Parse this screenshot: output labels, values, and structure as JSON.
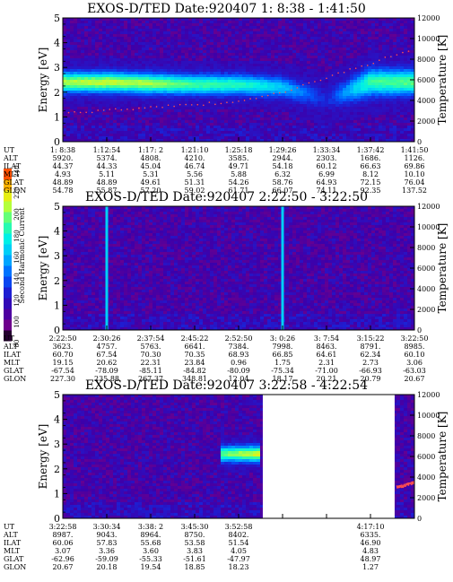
{
  "colorbar": {
    "label": "Second Harmonic Current",
    "ticks": [
      "80",
      "100",
      "120",
      "140",
      "160",
      "180",
      "200",
      "220",
      "240"
    ]
  },
  "panels": [
    {
      "title": "EXOS-D/TED   Date:920407   1: 8:38 - 1:41:50",
      "ylabel": "Energy [eV]",
      "y2label": "Temperature [K]",
      "info_labels": [
        "UT",
        "ALT",
        "ILAT",
        "MLT",
        "GLAT",
        "GLON"
      ],
      "info_columns": [
        [
          "1: 8:38",
          "5920.",
          "44.37",
          "4.93",
          "48.89",
          "54.78"
        ],
        [
          "1:12:54",
          "5374.",
          "44.33",
          "5.11",
          "48.89",
          "55.87"
        ],
        [
          "1:17: 2",
          "4808.",
          "45.04",
          "5.31",
          "49.61",
          "57.20"
        ],
        [
          "1:21:10",
          "4210.",
          "46.74",
          "5.56",
          "51.31",
          "59.02"
        ],
        [
          "1:25:18",
          "3585.",
          "49.71",
          "5.88",
          "54.26",
          "61.71"
        ],
        [
          "1:29:26",
          "2944.",
          "54.18",
          "6.32",
          "58.76",
          "66.07"
        ],
        [
          "1:33:34",
          "2303.",
          "60.12",
          "6.99",
          "64.93",
          "74.11"
        ],
        [
          "1:37:42",
          "1686.",
          "66.63",
          "8.12",
          "72.15",
          "92.35"
        ],
        [
          "1:41:50",
          "1126.",
          "69.86",
          "10.10",
          "76.04",
          "137.52"
        ]
      ]
    },
    {
      "title": "EXOS-D/TED   Date:920407   2:22:50 - 3:22:50",
      "ylabel": "Energy [eV]",
      "y2label": "Temperature [K]",
      "info_labels": [
        "UT",
        "ALT",
        "ILAT",
        "MLT",
        "GLAT",
        "GLON"
      ],
      "info_columns": [
        [
          "2:22:50",
          "3623.",
          "60.70",
          "19.15",
          "-67.54",
          "227.30"
        ],
        [
          "2:30:26",
          "4757.",
          "67.54",
          "20.62",
          "-78.09",
          "235.88"
        ],
        [
          "2:37:54",
          "5763.",
          "70.30",
          "22.31",
          "-85.11",
          "267.37"
        ],
        [
          "2:45:22",
          "6641.",
          "70.35",
          "23.84",
          "-84.82",
          "348.81"
        ],
        [
          "2:52:50",
          "7384.",
          "68.93",
          "0.96",
          "-80.09",
          "12.04"
        ],
        [
          "3: 0:26",
          "7998.",
          "66.85",
          "1.75",
          "-75.34",
          "18.17"
        ],
        [
          "3: 7:54",
          "8463.",
          "64.61",
          "2.31",
          "-71.00",
          "20.21"
        ],
        [
          "3:15:22",
          "8791.",
          "62.34",
          "2.73",
          "-66.93",
          "20.79"
        ],
        [
          "3:22:50",
          "8985.",
          "60.10",
          "3.06",
          "-63.03",
          "20.67"
        ]
      ]
    },
    {
      "title": "EXOS-D/TED   Date:920407   3:22:58 - 4:22:54",
      "ylabel": "Energy [eV]",
      "y2label": "Temperature [K]",
      "info_labels": [
        "UT",
        "ALT",
        "ILAT",
        "MLT",
        "GLAT",
        "GLON"
      ],
      "info_columns": [
        [
          "3:22:58",
          "8987.",
          "60.06",
          "3.07",
          "-62.96",
          "20.67"
        ],
        [
          "3:30:34",
          "9043.",
          "57.83",
          "3.36",
          "-59.09",
          "20.18"
        ],
        [
          "3:38: 2",
          "8964.",
          "55.68",
          "3.60",
          "-55.33",
          "19.54"
        ],
        [
          "3:45:30",
          "8750.",
          "53.58",
          "3.83",
          "-51.61",
          "18.85"
        ],
        [
          "3:52:58",
          "8402.",
          "51.54",
          "4.05",
          "-47.97",
          "18.23"
        ],
        [
          "",
          "",
          "",
          "",
          "",
          ""
        ],
        [
          "",
          "",
          "",
          "",
          "",
          ""
        ],
        [
          "4:17:10",
          "6335.",
          "46.90",
          "4.83",
          "48.97",
          "1.27"
        ],
        [
          "",
          "",
          "",
          "",
          "",
          ""
        ]
      ]
    }
  ],
  "chart_data": [
    {
      "type": "heatmap",
      "title": "EXOS-D/TED   Date:920407   1: 8:38 - 1:41:50",
      "ylabel": "Energy [eV]",
      "y2label": "Temperature [K]",
      "ylim": [
        0,
        5
      ],
      "y2lim": [
        0,
        12000
      ],
      "yticks": [
        0,
        1,
        2,
        3,
        4,
        5
      ],
      "y2ticks": [
        0,
        2000,
        4000,
        6000,
        8000,
        10000,
        12000
      ],
      "x": [
        "1: 8:38",
        "1:12:54",
        "1:17: 2",
        "1:21:10",
        "1:25:18",
        "1:29:26",
        "1:33:34",
        "1:37:42",
        "1:41:50"
      ],
      "colorscale_range": [
        80,
        240
      ],
      "band": {
        "center_ev": [
          2.4,
          2.4,
          2.35,
          2.3,
          2.3,
          2.2,
          1.7,
          2.4,
          2.4
        ],
        "half_width_ev": [
          0.45,
          0.45,
          0.45,
          0.45,
          0.45,
          0.45,
          0.5,
          0.6,
          0.55
        ],
        "intensity": [
          200,
          205,
          200,
          185,
          180,
          160,
          120,
          185,
          190
        ]
      },
      "series": [
        {
          "values_k": [
            2800,
            3000,
            3300,
            3600,
            3900,
            4800,
            6200,
            7600,
            9000
          ]
        }
      ]
    },
    {
      "type": "heatmap",
      "title": "EXOS-D/TED   Date:920407   2:22:50 - 3:22:50",
      "ylabel": "Energy [eV]",
      "y2label": "Temperature [K]",
      "ylim": [
        0,
        5
      ],
      "y2lim": [
        0,
        12000
      ],
      "yticks": [
        0,
        1,
        2,
        3,
        4,
        5
      ],
      "y2ticks": [
        0,
        2000,
        4000,
        6000,
        8000,
        10000,
        12000
      ],
      "x": [
        "2:22:50",
        "2:30:26",
        "2:37:54",
        "2:45:22",
        "2:52:50",
        "3: 0:26",
        "3: 7:54",
        "3:15:22",
        "3:22:50"
      ],
      "colorscale_range": [
        80,
        240
      ],
      "vertical_streaks": [
        "2:30:26",
        "3: 0:26"
      ]
    },
    {
      "type": "heatmap",
      "title": "EXOS-D/TED   Date:920407   3:22:58 - 4:22:54",
      "ylabel": "Energy [eV]",
      "y2label": "Temperature [K]",
      "ylim": [
        0,
        5
      ],
      "y2lim": [
        0,
        12000
      ],
      "yticks": [
        0,
        1,
        2,
        3,
        4,
        5
      ],
      "y2ticks": [
        0,
        2000,
        4000,
        6000,
        8000,
        10000,
        12000
      ],
      "x": [
        "3:22:58",
        "3:30:34",
        "3:38: 2",
        "3:45:30",
        "3:52:58",
        "",
        "",
        "4:17:10",
        ""
      ],
      "colorscale_range": [
        80,
        240
      ],
      "band": {
        "center_ev": [
          2.6,
          2.6
        ],
        "half_width_ev": [
          0.35,
          0.35
        ],
        "intensity": [
          190,
          210
        ],
        "range_x_index": [
          3.6,
          4.5
        ]
      },
      "data_gap_x_index": [
        4.55,
        7.55
      ],
      "series": [
        {
          "values_k": [
            3000,
            3200,
            3500
          ]
        }
      ]
    }
  ]
}
